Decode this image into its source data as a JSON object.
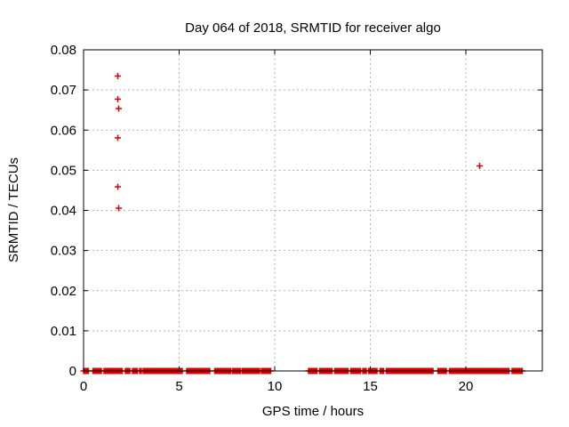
{
  "figure": {
    "background": "#ffffff"
  },
  "colors": {
    "marker": "#dd0000",
    "grid": "#b4b4b4",
    "axis": "#000000",
    "text": "#000000"
  },
  "chart_data": {
    "type": "scatter",
    "title": "Day 064 of 2018, SRMTID for receiver algo",
    "xlabel": "GPS time / hours",
    "ylabel": "SRMTID / TECUs",
    "xlim": [
      0,
      24
    ],
    "ylim": [
      0,
      0.08
    ],
    "grid": true,
    "legend": "none",
    "marker": {
      "shape": "plus",
      "color": "#dd0000",
      "size": 7
    },
    "x_ticks": [
      {
        "v": 0,
        "label": "0"
      },
      {
        "v": 5,
        "label": "5"
      },
      {
        "v": 10,
        "label": "10"
      },
      {
        "v": 15,
        "label": "15"
      },
      {
        "v": 20,
        "label": "20"
      }
    ],
    "y_ticks": [
      {
        "v": 0,
        "label": "0"
      },
      {
        "v": 0.01,
        "label": "0.01"
      },
      {
        "v": 0.02,
        "label": "0.02"
      },
      {
        "v": 0.03,
        "label": "0.03"
      },
      {
        "v": 0.04,
        "label": "0.04"
      },
      {
        "v": 0.05,
        "label": "0.05"
      },
      {
        "v": 0.06,
        "label": "0.06"
      },
      {
        "v": 0.07,
        "label": "0.07"
      },
      {
        "v": 0.08,
        "label": "0.08"
      }
    ],
    "outlier_points": [
      {
        "x": 1.79,
        "y": 0.0735
      },
      {
        "x": 1.79,
        "y": 0.0677
      },
      {
        "x": 1.84,
        "y": 0.0654
      },
      {
        "x": 1.79,
        "y": 0.0581
      },
      {
        "x": 1.79,
        "y": 0.0459
      },
      {
        "x": 1.84,
        "y": 0.0406
      },
      {
        "x": 20.71,
        "y": 0.0511
      }
    ],
    "zero_value_intervals_hours": [
      [
        0.0,
        0.25
      ],
      [
        0.48,
        0.95
      ],
      [
        1.07,
        2.06
      ],
      [
        2.18,
        2.46
      ],
      [
        2.56,
        2.81
      ],
      [
        2.92,
        3.03
      ],
      [
        3.12,
        5.2
      ],
      [
        5.4,
        6.6
      ],
      [
        6.85,
        7.7
      ],
      [
        7.8,
        8.2
      ],
      [
        8.3,
        9.2
      ],
      [
        9.3,
        9.83
      ],
      [
        11.77,
        12.24
      ],
      [
        12.36,
        13.02
      ],
      [
        13.14,
        13.87
      ],
      [
        13.98,
        14.49
      ],
      [
        14.6,
        14.8
      ],
      [
        14.9,
        15.35
      ],
      [
        15.5,
        15.73
      ],
      [
        15.84,
        18.3
      ],
      [
        18.53,
        19.0
      ],
      [
        19.15,
        22.26
      ],
      [
        22.41,
        22.96
      ]
    ]
  }
}
